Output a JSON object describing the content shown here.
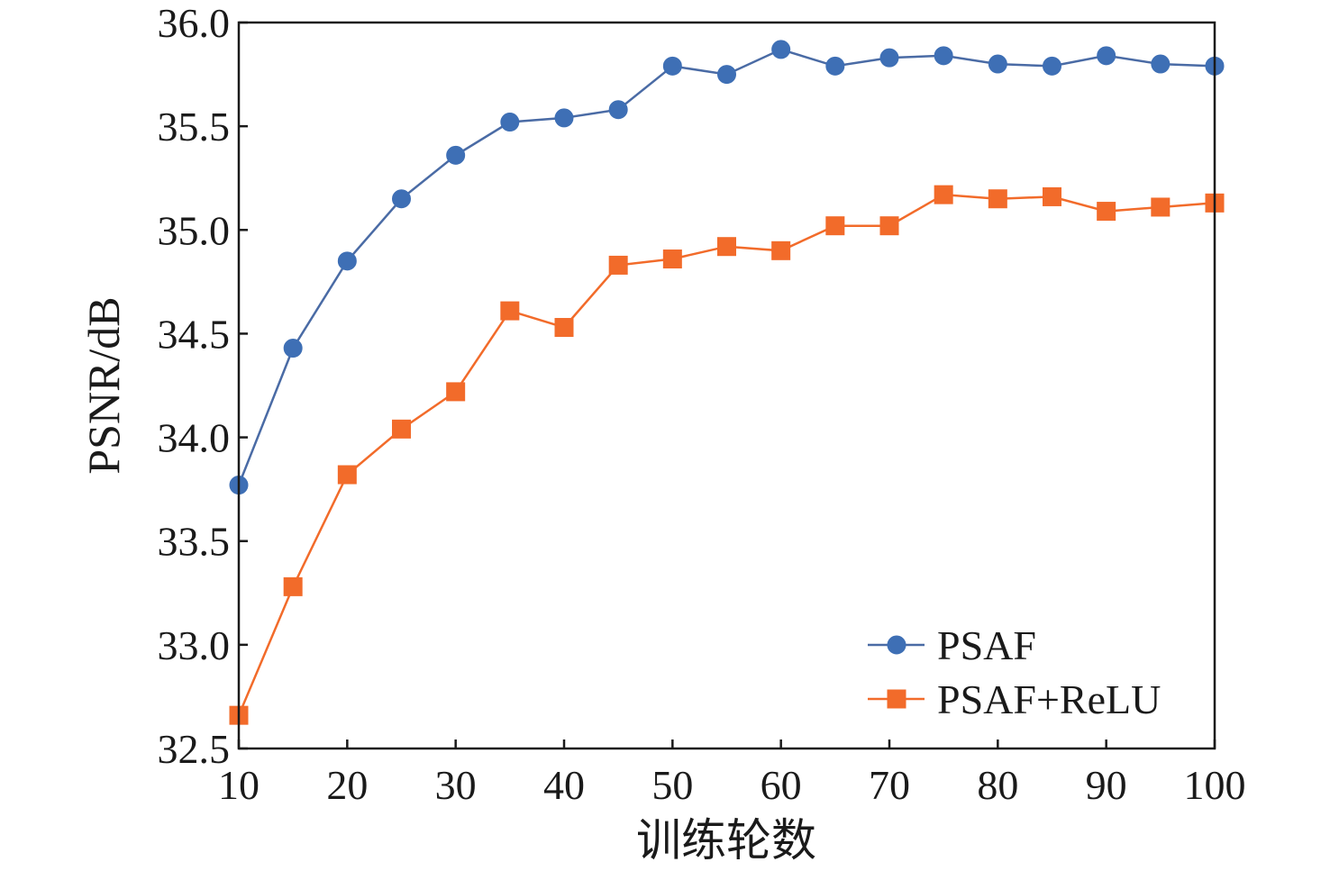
{
  "colors": {
    "psaf": "#4a6ba5",
    "psaf_marker": "#3e6fb5",
    "psaf_relu": "#f26b2a",
    "axis": "#1a1a1a"
  },
  "chart_data": {
    "type": "line",
    "title": "",
    "xlabel": "训练轮数",
    "ylabel": "PSNR/dB",
    "xlim": [
      10,
      100
    ],
    "ylim": [
      32.5,
      36.0
    ],
    "x_ticks": [
      10,
      20,
      30,
      40,
      50,
      60,
      70,
      80,
      90,
      100
    ],
    "x_tick_labels": [
      "10",
      "20",
      "30",
      "40",
      "50",
      "60",
      "70",
      "80",
      "90",
      "100"
    ],
    "y_ticks": [
      32.5,
      33.0,
      33.5,
      34.0,
      34.5,
      35.0,
      35.5,
      36.0
    ],
    "y_tick_labels": [
      "32.5",
      "33.0",
      "33.5",
      "34.0",
      "34.5",
      "35.0",
      "35.5",
      "36.0"
    ],
    "grid": false,
    "legend_position": "bottom-right",
    "x": [
      10,
      15,
      20,
      25,
      30,
      35,
      40,
      45,
      50,
      55,
      60,
      65,
      70,
      75,
      80,
      85,
      90,
      95,
      100
    ],
    "series": [
      {
        "name": "PSAF",
        "marker": "circle",
        "values": [
          33.77,
          34.43,
          34.85,
          35.15,
          35.36,
          35.52,
          35.54,
          35.58,
          35.79,
          35.75,
          35.87,
          35.79,
          35.83,
          35.84,
          35.8,
          35.79,
          35.84,
          35.8,
          35.79
        ]
      },
      {
        "name": "PSAF+ReLU",
        "marker": "square",
        "values": [
          32.66,
          33.28,
          33.82,
          34.04,
          34.22,
          34.61,
          34.53,
          34.83,
          34.86,
          34.92,
          34.9,
          35.02,
          35.02,
          35.17,
          35.15,
          35.16,
          35.09,
          35.11,
          35.13
        ]
      }
    ]
  }
}
